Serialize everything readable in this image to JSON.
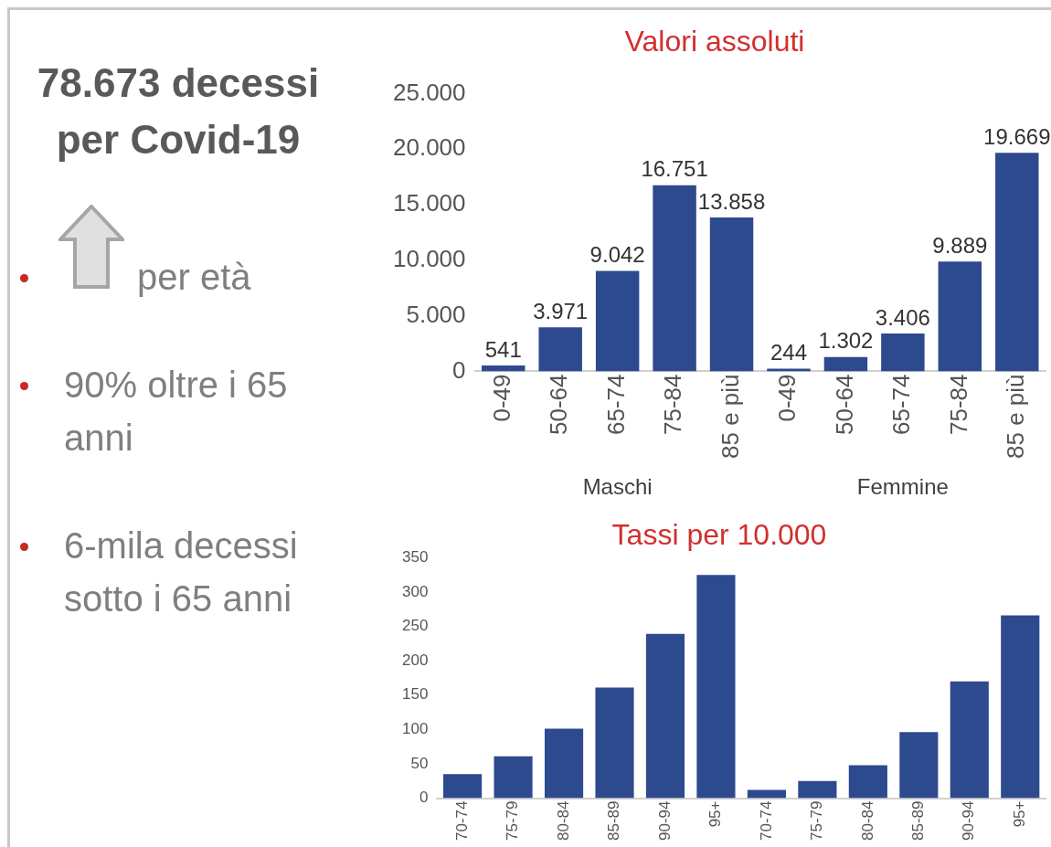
{
  "chart_data": [
    {
      "type": "other",
      "title": "78.673 decessi per Covid-19",
      "annotations": [
        "per età",
        "90% oltre i 65 anni",
        "6-mila decessi sotto i 65 anni"
      ]
    },
    {
      "type": "bar",
      "title": "Valori assoluti",
      "categories": [
        "0-49",
        "50-64",
        "65-74",
        "75-84",
        "85 e più",
        "0-49",
        "50-64",
        "65-74",
        "75-84",
        "85 e più"
      ],
      "values": [
        541,
        3971,
        9042,
        16751,
        13858,
        244,
        1302,
        3406,
        9889,
        19669
      ],
      "value_labels": [
        "541",
        "3.971",
        "9.042",
        "16.751",
        "13.858",
        "244",
        "1.302",
        "3.406",
        "9.889",
        "19.669"
      ],
      "color": "#2e4a8e",
      "ylim": [
        0,
        25000
      ],
      "yticks": [
        {
          "value": 0,
          "label": "0"
        },
        {
          "value": 5000,
          "label": "5.000"
        },
        {
          "value": 10000,
          "label": "10.000"
        },
        {
          "value": 15000,
          "label": "15.000"
        },
        {
          "value": 20000,
          "label": "20.000"
        },
        {
          "value": 25000,
          "label": "25.000"
        }
      ],
      "annotations": [
        "Maschi",
        "Femmine"
      ],
      "grid": false,
      "legend": false
    },
    {
      "type": "bar",
      "title": "Tassi per 10.000",
      "categories": [
        "70-74",
        "75-79",
        "80-84",
        "85-89",
        "90-94",
        "95+",
        "70-74",
        "75-79",
        "80-84",
        "85-89",
        "90-94",
        "95+"
      ],
      "values": [
        35,
        61,
        101,
        161,
        239,
        325,
        12,
        25,
        48,
        96,
        170,
        266
      ],
      "color": "#2e4a8e",
      "ylim": [
        0,
        350
      ],
      "yticks": [
        0,
        50,
        100,
        150,
        200,
        250,
        300,
        350
      ],
      "grid": false,
      "legend": false
    }
  ]
}
